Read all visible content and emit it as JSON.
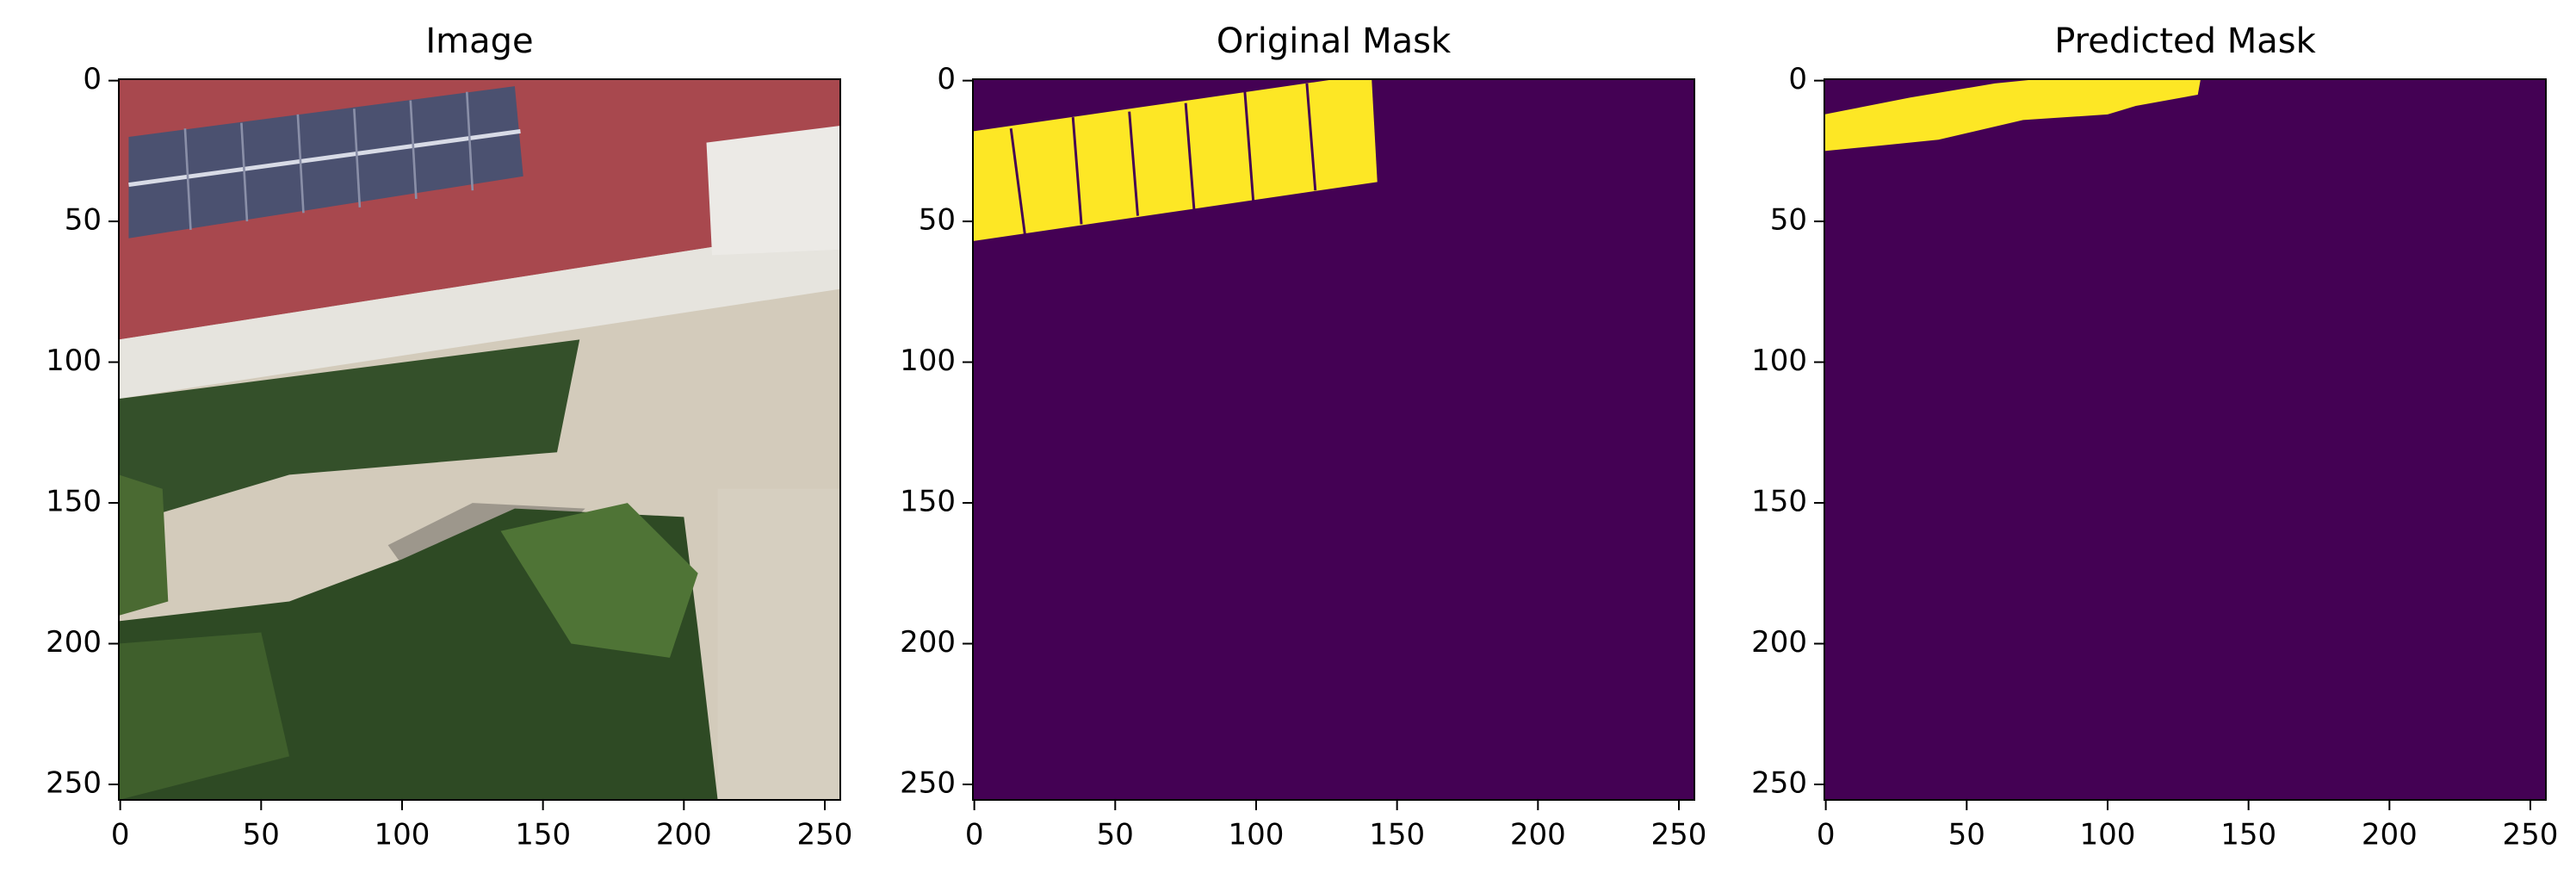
{
  "chart_data": [
    {
      "type": "image",
      "title": "Image",
      "xlim": [
        -0.5,
        255.5
      ],
      "ylim": [
        255.5,
        -0.5
      ],
      "xticks": [
        0,
        50,
        100,
        150,
        200,
        250
      ],
      "yticks": [
        0,
        50,
        100,
        150,
        200,
        250
      ]
    },
    {
      "type": "image",
      "title": "Original Mask",
      "xlim": [
        -0.5,
        255.5
      ],
      "ylim": [
        255.5,
        -0.5
      ],
      "xticks": [
        0,
        50,
        100,
        150,
        200,
        250
      ],
      "yticks": [
        0,
        50,
        100,
        150,
        200,
        250
      ]
    },
    {
      "type": "image",
      "title": "Predicted Mask",
      "xlim": [
        -0.5,
        255.5
      ],
      "ylim": [
        255.5,
        -0.5
      ],
      "xticks": [
        0,
        50,
        100,
        150,
        200,
        250
      ],
      "yticks": [
        0,
        50,
        100,
        150,
        200,
        250
      ]
    }
  ]
}
